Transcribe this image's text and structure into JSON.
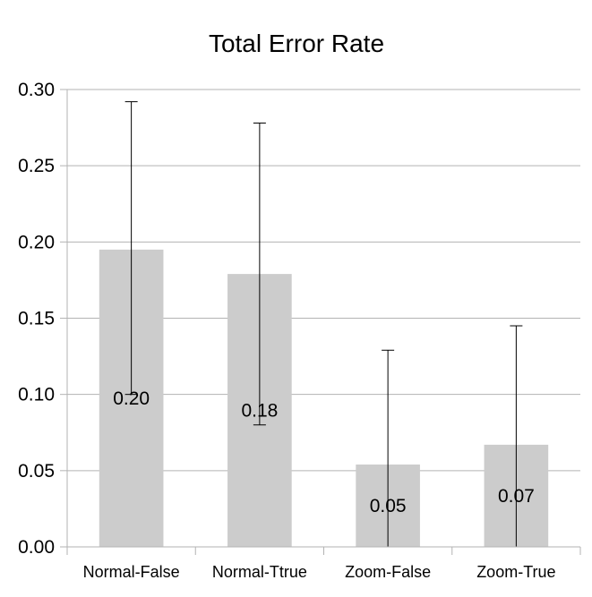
{
  "chart_data": {
    "type": "bar",
    "title": "Total Error Rate",
    "xlabel": "",
    "ylabel": "",
    "categories": [
      "Normal-False",
      "Normal-Ttrue",
      "Zoom-False",
      "Zoom-True"
    ],
    "values": [
      0.195,
      0.179,
      0.054,
      0.067
    ],
    "data_labels": [
      "0.20",
      "0.18",
      "0.05",
      "0.07"
    ],
    "error_bars": [
      {
        "low": 0.1,
        "high": 0.292
      },
      {
        "low": 0.08,
        "high": 0.278
      },
      {
        "low": 0.0,
        "high": 0.129
      },
      {
        "low": 0.0,
        "high": 0.145
      }
    ],
    "ylim": [
      0,
      0.3
    ],
    "yticks": [
      "0.00",
      "0.05",
      "0.10",
      "0.15",
      "0.20",
      "0.25",
      "0.30"
    ],
    "ytick_values": [
      0,
      0.05,
      0.1,
      0.15,
      0.2,
      0.25,
      0.3
    ],
    "grid": true,
    "legend": "none",
    "colors": {
      "bar": "#cccccc",
      "grid": "#b3b3b3",
      "axis": "#b3b3b3",
      "error_bar": "#000000"
    }
  }
}
